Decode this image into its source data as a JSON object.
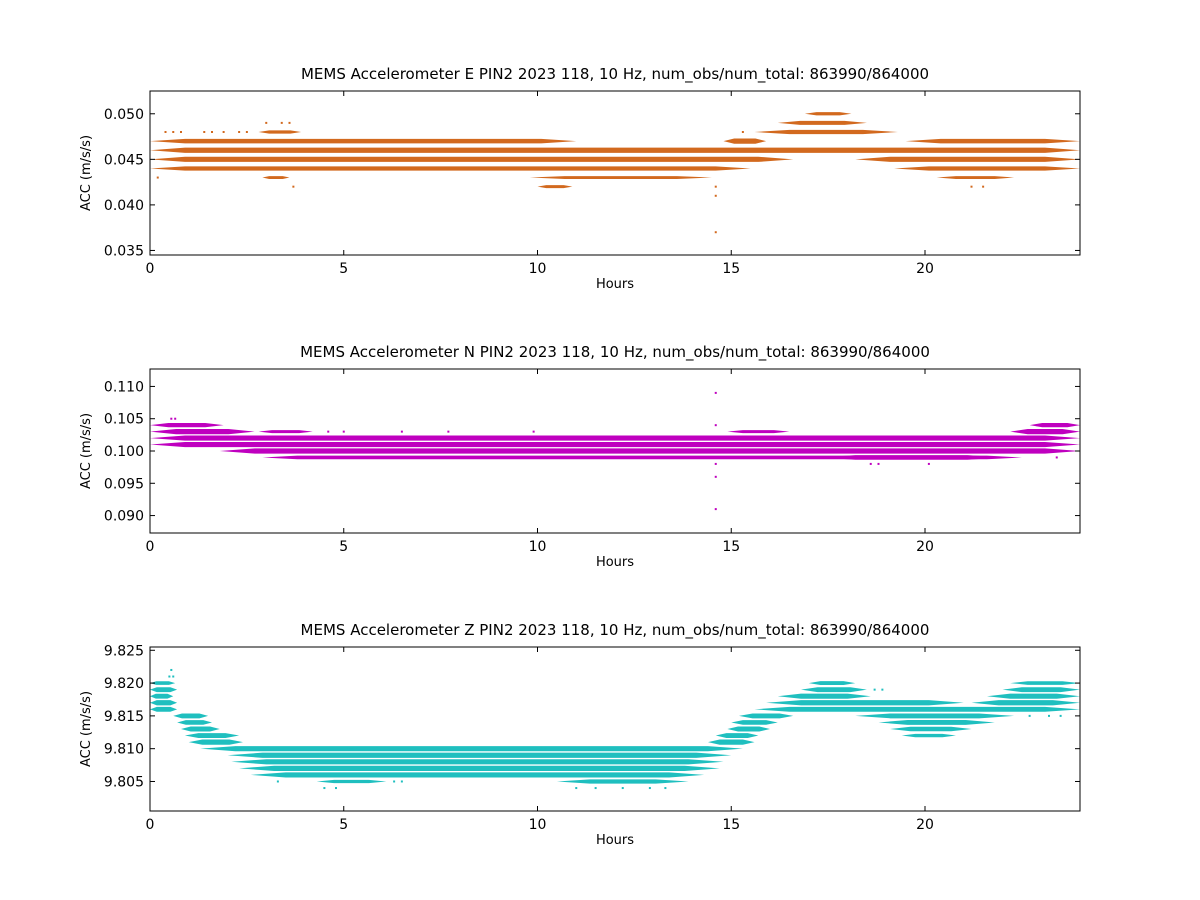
{
  "chart_data": [
    {
      "type": "scatter",
      "title": "MEMS Accelerometer E PIN2 2023 118, 10 Hz, num_obs/num_total: 863990/864000",
      "xlabel": "Hours",
      "ylabel": "ACC (m/s/s)",
      "xlim": [
        0,
        24
      ],
      "ylim": [
        0.0345,
        0.0525
      ],
      "xticks": [
        0,
        5,
        10,
        15,
        20
      ],
      "yticks": [
        0.035,
        0.04,
        0.045,
        0.05
      ],
      "ytick_labels": [
        "0.035",
        "0.040",
        "0.045",
        "0.050"
      ],
      "color": "#d2691e",
      "bands": [
        {
          "y": 0.047,
          "segments": [
            [
              0,
              11.0,
              0.8
            ],
            [
              14.8,
              15.9,
              1.0
            ],
            [
              19.5,
              24,
              0.8
            ]
          ]
        },
        {
          "y": 0.046,
          "segments": [
            [
              0,
              24,
              1.0
            ]
          ]
        },
        {
          "y": 0.045,
          "segments": [
            [
              0,
              16.6,
              1.0
            ],
            [
              18.2,
              24,
              1.0
            ]
          ]
        },
        {
          "y": 0.044,
          "segments": [
            [
              0,
              15.5,
              0.7
            ],
            [
              19.2,
              24,
              0.7
            ]
          ]
        },
        {
          "y": 0.048,
          "segments": [
            [
              2.8,
              3.9,
              0.4
            ],
            [
              15.6,
              19.3,
              0.7
            ]
          ]
        },
        {
          "y": 0.049,
          "segments": [
            [
              16.2,
              18.5,
              0.6
            ]
          ]
        },
        {
          "y": 0.05,
          "segments": [
            [
              16.9,
              18.1,
              0.4
            ]
          ]
        },
        {
          "y": 0.043,
          "segments": [
            [
              2.9,
              3.6,
              0.3
            ],
            [
              9.8,
              14.5,
              0.3
            ],
            [
              20.3,
              22.3,
              0.3
            ]
          ]
        },
        {
          "y": 0.042,
          "segments": [
            [
              10.0,
              10.9,
              0.3
            ]
          ]
        }
      ],
      "points": [
        [
          0.4,
          0.048
        ],
        [
          0.6,
          0.048
        ],
        [
          0.8,
          0.048
        ],
        [
          1.4,
          0.048
        ],
        [
          1.6,
          0.048
        ],
        [
          1.9,
          0.048
        ],
        [
          2.3,
          0.048
        ],
        [
          2.5,
          0.048
        ],
        [
          3.0,
          0.049
        ],
        [
          3.4,
          0.049
        ],
        [
          3.6,
          0.049
        ],
        [
          3.7,
          0.042
        ],
        [
          14.6,
          0.041
        ],
        [
          14.6,
          0.037
        ],
        [
          14.6,
          0.042
        ],
        [
          15.3,
          0.048
        ],
        [
          20.8,
          0.043
        ],
        [
          21.2,
          0.042
        ],
        [
          21.5,
          0.042
        ],
        [
          0.2,
          0.043
        ]
      ]
    },
    {
      "type": "scatter",
      "title": "MEMS Accelerometer N PIN2 2023 118, 10 Hz, num_obs/num_total: 863990/864000",
      "xlabel": "Hours",
      "ylabel": "ACC (m/s/s)",
      "xlim": [
        0,
        24
      ],
      "ylim": [
        0.0873,
        0.1127
      ],
      "xticks": [
        0,
        5,
        10,
        15,
        20
      ],
      "yticks": [
        0.09,
        0.095,
        0.1,
        0.105,
        0.11
      ],
      "ytick_labels": [
        "0.090",
        "0.095",
        "0.100",
        "0.105",
        "0.110"
      ],
      "color": "#bf00bf",
      "bands": [
        {
          "y": 0.104,
          "segments": [
            [
              0,
              1.9,
              0.7
            ],
            [
              22.7,
              24,
              0.7
            ]
          ]
        },
        {
          "y": 0.103,
          "segments": [
            [
              0,
              2.7,
              1.0
            ],
            [
              22.2,
              24,
              1.0
            ]
          ]
        },
        {
          "y": 0.102,
          "segments": [
            [
              0,
              24,
              1.0
            ]
          ]
        },
        {
          "y": 0.101,
          "segments": [
            [
              0,
              24,
              1.0
            ]
          ]
        },
        {
          "y": 0.1,
          "segments": [
            [
              1.8,
              24,
              1.0
            ]
          ]
        },
        {
          "y": 0.099,
          "segments": [
            [
              2.9,
              22.5,
              0.5
            ],
            [
              17.3,
              22.0,
              0.8
            ]
          ]
        },
        {
          "y": 0.103,
          "segments": [
            [
              2.8,
              4.2,
              0.3
            ],
            [
              14.9,
              16.5,
              0.3
            ]
          ]
        }
      ],
      "points": [
        [
          0.55,
          0.105
        ],
        [
          0.65,
          0.105
        ],
        [
          14.6,
          0.109
        ],
        [
          14.6,
          0.104
        ],
        [
          14.6,
          0.098
        ],
        [
          14.6,
          0.096
        ],
        [
          14.6,
          0.091
        ],
        [
          18.6,
          0.098
        ],
        [
          18.8,
          0.098
        ],
        [
          20.1,
          0.098
        ],
        [
          4.6,
          0.103
        ],
        [
          5.0,
          0.103
        ],
        [
          6.5,
          0.103
        ],
        [
          7.7,
          0.103
        ],
        [
          9.9,
          0.103
        ],
        [
          22.9,
          0.104
        ],
        [
          23.4,
          0.099
        ]
      ]
    },
    {
      "type": "scatter",
      "title": "MEMS Accelerometer Z PIN2 2023 118, 10 Hz, num_obs/num_total: 863990/864000",
      "xlabel": "Hours",
      "ylabel": "ACC (m/s/s)",
      "xlim": [
        0,
        24
      ],
      "ylim": [
        9.8005,
        9.8255
      ],
      "xticks": [
        0,
        5,
        10,
        15,
        20
      ],
      "yticks": [
        9.805,
        9.81,
        9.815,
        9.82,
        9.825
      ],
      "ytick_labels": [
        "9.805",
        "9.810",
        "9.815",
        "9.820",
        "9.825"
      ],
      "color": "#1fbfbf",
      "bands": [
        {
          "y": 9.82,
          "segments": [
            [
              0,
              0.65,
              0.5
            ],
            [
              17.0,
              18.2,
              0.6
            ],
            [
              22.2,
              24,
              0.5
            ]
          ]
        },
        {
          "y": 9.819,
          "segments": [
            [
              0,
              0.7,
              0.9
            ],
            [
              16.8,
              18.5,
              0.9
            ],
            [
              22.0,
              24,
              0.9
            ]
          ]
        },
        {
          "y": 9.818,
          "segments": [
            [
              0,
              0.6,
              0.9
            ],
            [
              16.2,
              18.6,
              1.0
            ],
            [
              21.6,
              24,
              1.0
            ]
          ]
        },
        {
          "y": 9.817,
          "segments": [
            [
              0,
              0.7,
              1.0
            ],
            [
              15.9,
              21.0,
              1.0
            ],
            [
              21.2,
              24,
              1.0
            ]
          ]
        },
        {
          "y": 9.816,
          "segments": [
            [
              0,
              0.7,
              0.9
            ],
            [
              15.6,
              24,
              0.9
            ]
          ]
        },
        {
          "y": 9.815,
          "segments": [
            [
              0.6,
              1.5,
              0.9
            ],
            [
              15.2,
              16.6,
              0.9
            ],
            [
              18.2,
              22.3,
              0.9
            ]
          ]
        },
        {
          "y": 9.814,
          "segments": [
            [
              0.7,
              1.6,
              0.8
            ],
            [
              15.0,
              16.2,
              0.8
            ],
            [
              18.8,
              21.8,
              0.9
            ]
          ]
        },
        {
          "y": 9.813,
          "segments": [
            [
              0.8,
              1.8,
              0.9
            ],
            [
              14.9,
              16.0,
              0.9
            ],
            [
              19.1,
              21.2,
              0.8
            ]
          ]
        },
        {
          "y": 9.812,
          "segments": [
            [
              0.9,
              2.3,
              0.9
            ],
            [
              14.6,
              15.7,
              0.9
            ],
            [
              19.4,
              20.8,
              0.4
            ]
          ]
        },
        {
          "y": 9.811,
          "segments": [
            [
              1.0,
              2.4,
              1.0
            ],
            [
              14.4,
              15.6,
              1.0
            ]
          ]
        },
        {
          "y": 9.81,
          "segments": [
            [
              1.3,
              15.3,
              1.0
            ]
          ]
        },
        {
          "y": 9.809,
          "segments": [
            [
              2.0,
              15.0,
              1.0
            ]
          ]
        },
        {
          "y": 9.808,
          "segments": [
            [
              2.1,
              14.8,
              1.0
            ]
          ]
        },
        {
          "y": 9.807,
          "segments": [
            [
              2.3,
              14.7,
              1.0
            ]
          ]
        },
        {
          "y": 9.806,
          "segments": [
            [
              2.6,
              14.3,
              1.0
            ]
          ]
        },
        {
          "y": 9.805,
          "segments": [
            [
              4.3,
              6.1,
              0.4
            ],
            [
              10.5,
              13.9,
              0.7
            ]
          ]
        },
        {
          "y": 9.81,
          "segments": [
            [
              5.0,
              10.5,
              0.4
            ],
            [
              12.4,
              14.0,
              0.4
            ]
          ]
        }
      ],
      "points": [
        [
          0.55,
          9.822
        ],
        [
          0.6,
          9.821
        ],
        [
          0.5,
          9.821
        ],
        [
          4.5,
          9.804
        ],
        [
          4.8,
          9.804
        ],
        [
          11.0,
          9.804
        ],
        [
          11.5,
          9.804
        ],
        [
          12.2,
          9.804
        ],
        [
          12.9,
          9.804
        ],
        [
          13.3,
          9.804
        ],
        [
          3.3,
          9.805
        ],
        [
          6.3,
          9.805
        ],
        [
          6.5,
          9.805
        ],
        [
          18.7,
          9.819
        ],
        [
          18.9,
          9.819
        ],
        [
          17.2,
          9.816
        ],
        [
          22.7,
          9.815
        ],
        [
          23.2,
          9.815
        ],
        [
          23.5,
          9.815
        ],
        [
          22.8,
          9.82
        ]
      ]
    }
  ]
}
